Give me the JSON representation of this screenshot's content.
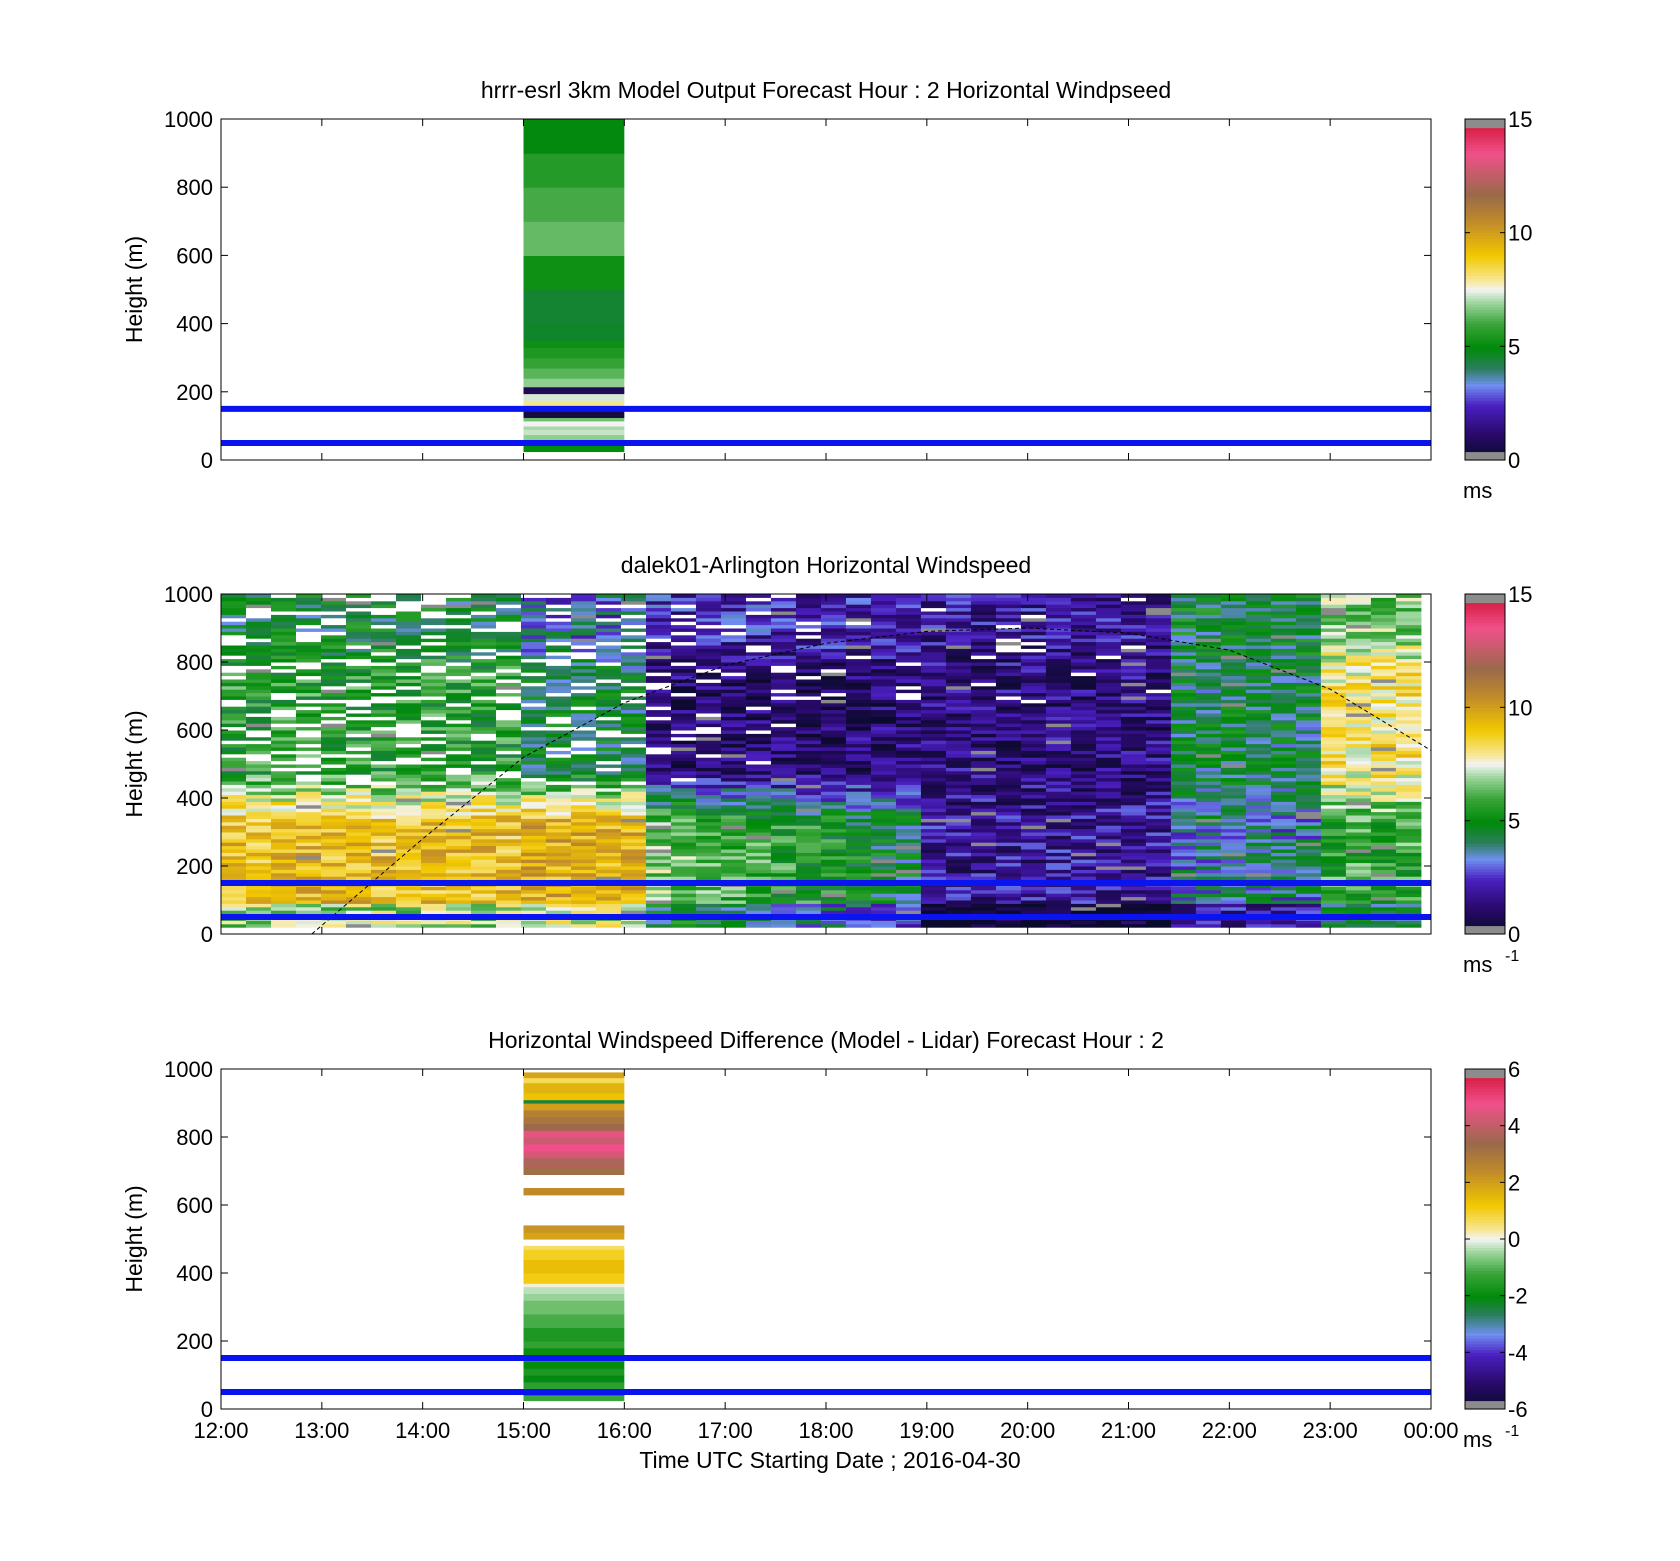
{
  "chart_data": [
    {
      "type": "heatmap",
      "title": "hrrr-esrl 3km Model Output   Forecast Hour : 2 Horizontal Windpseed",
      "ylabel": "Height (m)",
      "xlabel": "",
      "ylim": [
        0,
        1000
      ],
      "yticks": [
        "0",
        "200",
        "400",
        "600",
        "800",
        "1000"
      ],
      "xlim_hours": [
        12,
        24
      ],
      "colorbar": {
        "range": [
          0,
          15
        ],
        "ticks": [
          "0",
          "5",
          "10",
          "15"
        ],
        "unit": "ms",
        "unit_sup": "",
        "palette": "speed"
      },
      "reference_lines_m": [
        50,
        150
      ],
      "columns": [
        {
          "x_start": 15,
          "x_end": 16,
          "cells": [
            [
              25,
              45,
              5.0
            ],
            [
              45,
              60,
              6.2
            ],
            [
              60,
              75,
              6.8
            ],
            [
              75,
              90,
              7.2
            ],
            [
              90,
              100,
              7.0
            ],
            [
              100,
              115,
              7.5
            ],
            [
              115,
              125,
              6.5
            ],
            [
              125,
              145,
              0.4
            ],
            [
              145,
              160,
              7.6
            ],
            [
              160,
              175,
              8.0
            ],
            [
              175,
              195,
              7.3
            ],
            [
              195,
              215,
              0.8
            ],
            [
              215,
              240,
              6.8
            ],
            [
              240,
              270,
              6.3
            ],
            [
              270,
              300,
              5.9
            ],
            [
              300,
              330,
              5.5
            ],
            [
              330,
              350,
              5.2
            ],
            [
              350,
              400,
              4.6
            ],
            [
              400,
              500,
              4.5
            ],
            [
              500,
              600,
              5.2
            ],
            [
              600,
              700,
              6.4
            ],
            [
              700,
              800,
              6.1
            ],
            [
              800,
              900,
              5.6
            ],
            [
              900,
              1000,
              4.9
            ]
          ]
        }
      ]
    },
    {
      "type": "heatmap",
      "title": "dalek01-Arlington  Horizontal Windspeed",
      "ylabel": "Height (m)",
      "xlabel": "",
      "ylim": [
        0,
        1000
      ],
      "yticks": [
        "0",
        "200",
        "400",
        "600",
        "800",
        "1000"
      ],
      "xlim_hours": [
        12,
        24
      ],
      "colorbar": {
        "range": [
          0,
          15
        ],
        "ticks": [
          "0",
          "5",
          "10",
          "15"
        ],
        "unit": "ms",
        "unit_sup": "-1",
        "palette": "speed"
      },
      "reference_lines_m": [
        50,
        150
      ],
      "overlay_curve": {
        "x_hours": [
          12.9,
          14,
          15,
          16,
          17,
          18,
          19,
          20,
          21,
          22,
          23,
          24
        ],
        "heights_m": [
          0,
          280,
          520,
          680,
          790,
          855,
          890,
          900,
          885,
          835,
          720,
          540
        ]
      },
      "grid_spec": {
        "x_start": 12,
        "x_end": 23.9,
        "columns": 48,
        "y_start": 20,
        "y_end": 1000,
        "rows": 98
      }
    },
    {
      "type": "heatmap",
      "title": "Horizontal Windspeed Difference (Model - Lidar) Forecast Hour : 2",
      "ylabel": "Height (m)",
      "xlabel": "Time UTC  Starting Date ; 2016-04-30",
      "ylim": [
        0,
        1000
      ],
      "yticks": [
        "0",
        "200",
        "400",
        "600",
        "800",
        "1000"
      ],
      "xticks": [
        "12:00",
        "13:00",
        "14:00",
        "15:00",
        "16:00",
        "17:00",
        "18:00",
        "19:00",
        "20:00",
        "21:00",
        "22:00",
        "23:00",
        "00:00"
      ],
      "xlim_hours": [
        12,
        24
      ],
      "colorbar": {
        "range": [
          -6,
          6
        ],
        "ticks": [
          "-6",
          "-4",
          "-2",
          "0",
          "2",
          "4",
          "6"
        ],
        "unit": "ms",
        "unit_sup": "-1",
        "palette": "diff"
      },
      "reference_lines_m": [
        50,
        150
      ],
      "columns": [
        {
          "x_start": 15,
          "x_end": 16,
          "cells": [
            [
              25,
              40,
              -1.2
            ],
            [
              40,
              60,
              -1.8
            ],
            [
              60,
              80,
              -1.4
            ],
            [
              80,
              100,
              -2.1
            ],
            [
              100,
              120,
              -1.6
            ],
            [
              120,
              140,
              -2.0
            ],
            [
              140,
              160,
              -1.5
            ],
            [
              160,
              180,
              -1.9
            ],
            [
              180,
              200,
              -1.3
            ],
            [
              200,
              240,
              -1.6
            ],
            [
              240,
              280,
              -1.1
            ],
            [
              280,
              320,
              -0.8
            ],
            [
              320,
              340,
              -0.5
            ],
            [
              340,
              360,
              -0.3
            ],
            [
              360,
              370,
              0.1
            ],
            [
              370,
              400,
              1.1
            ],
            [
              400,
              440,
              1.4
            ],
            [
              440,
              470,
              1.0
            ],
            [
              470,
              480,
              0.6
            ],
            [
              500,
              520,
              1.9
            ],
            [
              520,
              540,
              2.2
            ],
            [
              630,
              650,
              2.4
            ],
            [
              690,
              710,
              3.2
            ],
            [
              710,
              740,
              3.7
            ],
            [
              740,
              760,
              4.4
            ],
            [
              760,
              780,
              4.8
            ],
            [
              780,
              800,
              4.2
            ],
            [
              800,
              820,
              4.6
            ],
            [
              820,
              840,
              3.4
            ],
            [
              840,
              860,
              3.0
            ],
            [
              860,
              880,
              2.7
            ],
            [
              880,
              900,
              2.0
            ],
            [
              900,
              910,
              -2.4
            ],
            [
              910,
              930,
              1.3
            ],
            [
              930,
              960,
              1.6
            ],
            [
              960,
              975,
              0.7
            ],
            [
              975,
              990,
              1.9
            ]
          ]
        }
      ]
    }
  ]
}
